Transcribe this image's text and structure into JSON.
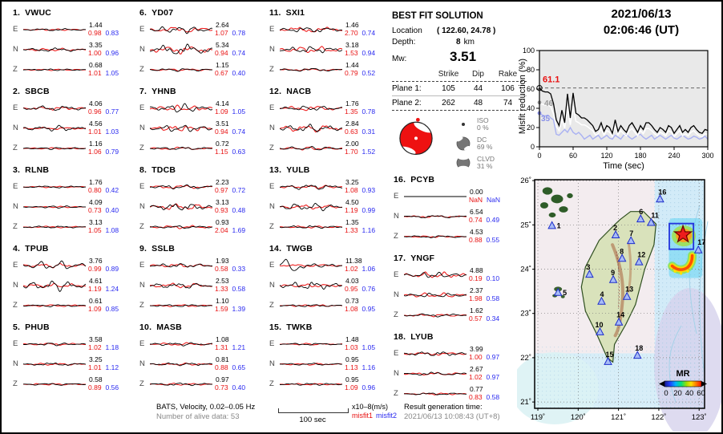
{
  "colors": {
    "misfit1_red": "#e81010",
    "misfit2_blue": "#2a2af0",
    "synthetic_red": "#ee2222",
    "observed_black": "#000000",
    "misfit_line2": "#a9b1f2",
    "station_triangle_fill": "#a8bcf6",
    "station_triangle_stroke": "#1e2ecc",
    "epicenter_red": "#ee1c1c",
    "plot_bg": "#e9e9e9"
  },
  "best_fit": {
    "title": "BEST FIT SOLUTION",
    "location_label": "Location",
    "location_value": "( 122.60,  24.78 )",
    "depth_label": "Depth:",
    "depth_value": "8",
    "depth_unit": "km",
    "mw_label": "Mw:",
    "mw_value": "3.51",
    "col_strike": "Strike",
    "col_dip": "Dip",
    "col_rake": "Rake",
    "plane1": {
      "label": "Plane 1:",
      "strike": "105",
      "dip": "44",
      "rake": "106"
    },
    "plane2": {
      "label": "Plane 2:",
      "strike": "262",
      "dip": "48",
      "rake": "74"
    },
    "iso": {
      "label": "ISO",
      "pct": "0 %"
    },
    "dc": {
      "label": "DC",
      "pct": "69 %"
    },
    "clvd": {
      "label": "CLVD",
      "pct": "31 %"
    }
  },
  "misfit_plot": {
    "title_line1": "2021/06/13",
    "title_line2": "02:06:46  (UT)",
    "ylabel": "Misfit reduction (%)",
    "xlabel": "Time (sec)",
    "best_value_label": "61.1",
    "white_start_label": "46",
    "blue_start_label": "35"
  },
  "map": {
    "lat_ticks": [
      "26˚",
      "25˚",
      "24˚",
      "23˚",
      "22˚",
      "21˚"
    ],
    "lon_ticks": [
      "119˚",
      "120˚",
      "121˚",
      "122˚",
      "123˚"
    ],
    "colorbar_label": "MR",
    "colorbar_ticks": [
      "0",
      "20",
      "40",
      "60"
    ],
    "epicenter": {
      "lon": 122.6,
      "lat": 24.78
    },
    "stations": [
      {
        "num": "1",
        "lon": 119.35,
        "lat": 24.98,
        "lx": 6,
        "ly": 3
      },
      {
        "num": "2",
        "lon": 120.93,
        "lat": 24.77,
        "lx": -3,
        "ly": -6
      },
      {
        "num": "3",
        "lon": 120.28,
        "lat": 23.88,
        "lx": -4,
        "ly": -6
      },
      {
        "num": "4",
        "lon": 120.58,
        "lat": 23.27,
        "lx": -2,
        "ly": -6
      },
      {
        "num": "5",
        "lon": 119.5,
        "lat": 23.47,
        "lx": 6,
        "ly": 3
      },
      {
        "num": "6",
        "lon": 121.55,
        "lat": 25.13,
        "lx": -2,
        "ly": -6
      },
      {
        "num": "7",
        "lon": 121.31,
        "lat": 24.64,
        "lx": -2,
        "ly": -6
      },
      {
        "num": "8",
        "lon": 121.09,
        "lat": 24.24,
        "lx": -3,
        "ly": -6
      },
      {
        "num": "9",
        "lon": 120.87,
        "lat": 23.76,
        "lx": -3,
        "ly": -6
      },
      {
        "num": "10",
        "lon": 120.54,
        "lat": 22.58,
        "lx": -6,
        "ly": -6
      },
      {
        "num": "11",
        "lon": 121.81,
        "lat": 25.05,
        "lx": 0,
        "ly": -6
      },
      {
        "num": "12",
        "lon": 121.51,
        "lat": 24.16,
        "lx": -2,
        "ly": -6
      },
      {
        "num": "13",
        "lon": 121.21,
        "lat": 23.38,
        "lx": -2,
        "ly": -6
      },
      {
        "num": "14",
        "lon": 121.01,
        "lat": 22.8,
        "lx": -3,
        "ly": -6
      },
      {
        "num": "15",
        "lon": 120.74,
        "lat": 21.91,
        "lx": -3,
        "ly": -6
      },
      {
        "num": "16",
        "lon": 122.03,
        "lat": 25.58,
        "lx": -2,
        "ly": -6
      },
      {
        "num": "17",
        "lon": 122.98,
        "lat": 24.43,
        "lx": -1,
        "ly": -7
      },
      {
        "num": "18",
        "lon": 121.47,
        "lat": 22.05,
        "lx": -3,
        "ly": -6
      }
    ]
  },
  "footer": {
    "line1": "BATS, Velocity, 0.02–0.05 Hz",
    "line2": "Number of alive data: 53",
    "scalebar_label": "100 sec",
    "units": "x10–8(m/s)",
    "misfit1_label": "misfit1",
    "misfit2_label": "misfit2",
    "result_label": "Result generation time:",
    "result_time": "2021/06/13 10:08:43 (UT+8)"
  },
  "stations": [
    {
      "label": "1.",
      "name": "VWUC",
      "channels": [
        {
          "comp": "E",
          "peak": "1.44",
          "misfit1": "0.98",
          "misfit2": "0.83",
          "obs_amp": 1.6,
          "syn_amp": 1.2
        },
        {
          "comp": "N",
          "peak": "3.35",
          "misfit1": "1.00",
          "misfit2": "0.96",
          "obs_amp": 2.6,
          "syn_amp": 2.0
        },
        {
          "comp": "Z",
          "peak": "0.68",
          "misfit1": "1.01",
          "misfit2": "1.05",
          "obs_amp": 1.3,
          "syn_amp": 1.0
        }
      ]
    },
    {
      "label": "2.",
      "name": "SBCB",
      "channels": [
        {
          "comp": "E",
          "peak": "4.06",
          "misfit1": "0.96",
          "misfit2": "0.77",
          "obs_amp": 3.6,
          "syn_amp": 2.4
        },
        {
          "comp": "N",
          "peak": "4.56",
          "misfit1": "1.01",
          "misfit2": "1.03",
          "obs_amp": 4.0,
          "syn_amp": 1.6
        },
        {
          "comp": "Z",
          "peak": "1.16",
          "misfit1": "1.06",
          "misfit2": "0.79",
          "obs_amp": 1.6,
          "syn_amp": 1.2
        }
      ]
    },
    {
      "label": "3.",
      "name": "RLNB",
      "channels": [
        {
          "comp": "E",
          "peak": "1.76",
          "misfit1": "0.80",
          "misfit2": "0.42",
          "obs_amp": 1.5,
          "syn_amp": 1.0
        },
        {
          "comp": "N",
          "peak": "4.09",
          "misfit1": "0.73",
          "misfit2": "0.40",
          "obs_amp": 1.6,
          "syn_amp": 1.0
        },
        {
          "comp": "Z",
          "peak": "3.13",
          "misfit1": "1.05",
          "misfit2": "1.08",
          "obs_amp": 1.5,
          "syn_amp": 1.2
        }
      ]
    },
    {
      "label": "4.",
      "name": "TPUB",
      "channels": [
        {
          "comp": "E",
          "peak": "3.76",
          "misfit1": "0.99",
          "misfit2": "0.89",
          "obs_amp": 6.5,
          "syn_amp": 3.0
        },
        {
          "comp": "N",
          "peak": "4.61",
          "misfit1": "1.19",
          "misfit2": "1.24",
          "obs_amp": 7.5,
          "syn_amp": 3.0
        },
        {
          "comp": "Z",
          "peak": "0.61",
          "misfit1": "1.09",
          "misfit2": "0.85",
          "obs_amp": 1.6,
          "syn_amp": 1.4
        }
      ]
    },
    {
      "label": "5.",
      "name": "PHUB",
      "channels": [
        {
          "comp": "E",
          "peak": "3.58",
          "misfit1": "1.02",
          "misfit2": "1.18",
          "obs_amp": 2.0,
          "syn_amp": 1.5
        },
        {
          "comp": "N",
          "peak": "3.25",
          "misfit1": "1.01",
          "misfit2": "1.12",
          "obs_amp": 2.0,
          "syn_amp": 1.5
        },
        {
          "comp": "Z",
          "peak": "0.58",
          "misfit1": "0.89",
          "misfit2": "0.56",
          "obs_amp": 1.5,
          "syn_amp": 1.2
        }
      ]
    },
    {
      "label": "6.",
      "name": "YD07",
      "channels": [
        {
          "comp": "E",
          "peak": "2.64",
          "misfit1": "1.07",
          "misfit2": "0.78",
          "obs_amp": 5.0,
          "syn_amp": 4.0
        },
        {
          "comp": "N",
          "peak": "5.34",
          "misfit1": "0.94",
          "misfit2": "0.74",
          "obs_amp": 7.5,
          "syn_amp": 5.5
        },
        {
          "comp": "Z",
          "peak": "1.15",
          "misfit1": "0.67",
          "misfit2": "0.40",
          "obs_amp": 2.2,
          "syn_amp": 1.6
        }
      ]
    },
    {
      "label": "7.",
      "name": "YHNB",
      "channels": [
        {
          "comp": "E",
          "peak": "4.14",
          "misfit1": "1.09",
          "misfit2": "1.05",
          "obs_amp": 6.0,
          "syn_amp": 4.0
        },
        {
          "comp": "N",
          "peak": "3.51",
          "misfit1": "0.94",
          "misfit2": "0.74",
          "obs_amp": 5.0,
          "syn_amp": 4.0
        },
        {
          "comp": "Z",
          "peak": "0.72",
          "misfit1": "1.15",
          "misfit2": "0.63",
          "obs_amp": 2.0,
          "syn_amp": 2.0
        }
      ]
    },
    {
      "label": "8.",
      "name": "TDCB",
      "channels": [
        {
          "comp": "E",
          "peak": "2.23",
          "misfit1": "0.97",
          "misfit2": "0.72",
          "obs_amp": 3.0,
          "syn_amp": 2.5
        },
        {
          "comp": "N",
          "peak": "3.13",
          "misfit1": "0.93",
          "misfit2": "0.48",
          "obs_amp": 5.0,
          "syn_amp": 4.5
        },
        {
          "comp": "Z",
          "peak": "0.93",
          "misfit1": "2.04",
          "misfit2": "1.69",
          "obs_amp": 2.0,
          "syn_amp": 2.2
        }
      ]
    },
    {
      "label": "9.",
      "name": "SSLB",
      "channels": [
        {
          "comp": "E",
          "peak": "1.93",
          "misfit1": "0.58",
          "misfit2": "0.33",
          "obs_amp": 3.0,
          "syn_amp": 2.5
        },
        {
          "comp": "N",
          "peak": "2.53",
          "misfit1": "1.33",
          "misfit2": "0.58",
          "obs_amp": 4.0,
          "syn_amp": 3.5
        },
        {
          "comp": "Z",
          "peak": "1.10",
          "misfit1": "1.59",
          "misfit2": "1.39",
          "obs_amp": 1.6,
          "syn_amp": 1.6
        }
      ]
    },
    {
      "label": "10.",
      "name": "MASB",
      "channels": [
        {
          "comp": "E",
          "peak": "1.08",
          "misfit1": "1.31",
          "misfit2": "1.21",
          "obs_amp": 2.4,
          "syn_amp": 2.0
        },
        {
          "comp": "N",
          "peak": "0.81",
          "misfit1": "0.88",
          "misfit2": "0.65",
          "obs_amp": 2.0,
          "syn_amp": 1.6
        },
        {
          "comp": "Z",
          "peak": "0.97",
          "misfit1": "0.73",
          "misfit2": "0.40",
          "obs_amp": 2.0,
          "syn_amp": 1.5
        }
      ]
    },
    {
      "label": "11.",
      "name": "SXI1",
      "channels": [
        {
          "comp": "E",
          "peak": "1.46",
          "misfit1": "2.70",
          "misfit2": "0.74",
          "obs_amp": 3.8,
          "syn_amp": 3.8
        },
        {
          "comp": "N",
          "peak": "3.18",
          "misfit1": "1.53",
          "misfit2": "0.94",
          "obs_amp": 4.6,
          "syn_amp": 4.6
        },
        {
          "comp": "Z",
          "peak": "1.44",
          "misfit1": "0.79",
          "misfit2": "0.52",
          "obs_amp": 2.4,
          "syn_amp": 1.5
        }
      ]
    },
    {
      "label": "12.",
      "name": "NACB",
      "channels": [
        {
          "comp": "E",
          "peak": "1.76",
          "misfit1": "1.35",
          "misfit2": "0.78",
          "obs_amp": 3.4,
          "syn_amp": 3.4
        },
        {
          "comp": "N",
          "peak": "2.84",
          "misfit1": "0.63",
          "misfit2": "0.31",
          "obs_amp": 5.5,
          "syn_amp": 5.2
        },
        {
          "comp": "Z",
          "peak": "2.00",
          "misfit1": "1.70",
          "misfit2": "1.52",
          "obs_amp": 2.8,
          "syn_amp": 2.4
        }
      ]
    },
    {
      "label": "13.",
      "name": "YULB",
      "channels": [
        {
          "comp": "E",
          "peak": "3.25",
          "misfit1": "1.08",
          "misfit2": "0.93",
          "obs_amp": 3.8,
          "syn_amp": 2.4
        },
        {
          "comp": "N",
          "peak": "4.50",
          "misfit1": "1.19",
          "misfit2": "0.99",
          "obs_amp": 5.5,
          "syn_amp": 3.0
        },
        {
          "comp": "Z",
          "peak": "1.35",
          "misfit1": "1.33",
          "misfit2": "1.16",
          "obs_amp": 2.0,
          "syn_amp": 1.6
        }
      ]
    },
    {
      "label": "14.",
      "name": "TWGB",
      "channels": [
        {
          "comp": "E",
          "peak": "11.38",
          "misfit1": "1.02",
          "misfit2": "1.06",
          "obs_amp": 3.0,
          "syn_amp": 1.6,
          "spike": 9.5
        },
        {
          "comp": "N",
          "peak": "4.03",
          "misfit1": "0.95",
          "misfit2": "0.76",
          "obs_amp": 5.5,
          "syn_amp": 2.4
        },
        {
          "comp": "Z",
          "peak": "0.73",
          "misfit1": "1.08",
          "misfit2": "0.95",
          "obs_amp": 1.6,
          "syn_amp": 1.4
        }
      ]
    },
    {
      "label": "15.",
      "name": "TWKB",
      "channels": [
        {
          "comp": "E",
          "peak": "1.48",
          "misfit1": "1.03",
          "misfit2": "1.05",
          "obs_amp": 1.5,
          "syn_amp": 1.2
        },
        {
          "comp": "N",
          "peak": "0.95",
          "misfit1": "1.13",
          "misfit2": "1.16",
          "obs_amp": 1.5,
          "syn_amp": 1.4
        },
        {
          "comp": "Z",
          "peak": "0.95",
          "misfit1": "1.09",
          "misfit2": "0.96",
          "obs_amp": 1.5,
          "syn_amp": 1.2
        }
      ]
    },
    {
      "label": "16.",
      "name": "PCYB",
      "channels": [
        {
          "comp": "E",
          "peak": "0.00",
          "misfit1": "NaN",
          "misfit2": "NaN",
          "obs_amp": 0,
          "syn_amp": 0
        },
        {
          "comp": "N",
          "peak": "6.54",
          "misfit1": "0.74",
          "misfit2": "0.49",
          "obs_amp": 2.0,
          "syn_amp": 1.5
        },
        {
          "comp": "Z",
          "peak": "4.53",
          "misfit1": "0.88",
          "misfit2": "0.55",
          "obs_amp": 1.6,
          "syn_amp": 1.3
        }
      ]
    },
    {
      "label": "17.",
      "name": "YNGF",
      "channels": [
        {
          "comp": "E",
          "peak": "4.88",
          "misfit1": "0.19",
          "misfit2": "0.10",
          "obs_amp": 4.0,
          "syn_amp": 4.4
        },
        {
          "comp": "N",
          "peak": "2.37",
          "misfit1": "1.98",
          "misfit2": "0.58",
          "obs_amp": 3.0,
          "syn_amp": 3.4
        },
        {
          "comp": "Z",
          "peak": "1.62",
          "misfit1": "0.57",
          "misfit2": "0.34",
          "obs_amp": 2.2,
          "syn_amp": 2.0
        }
      ]
    },
    {
      "label": "18.",
      "name": "LYUB",
      "channels": [
        {
          "comp": "E",
          "peak": "3.99",
          "misfit1": "1.00",
          "misfit2": "0.97",
          "obs_amp": 3.2,
          "syn_amp": 2.0
        },
        {
          "comp": "N",
          "peak": "2.67",
          "misfit1": "1.02",
          "misfit2": "0.97",
          "obs_amp": 2.2,
          "syn_amp": 2.0
        },
        {
          "comp": "Z",
          "peak": "0.77",
          "misfit1": "0.83",
          "misfit2": "0.58",
          "obs_amp": 1.6,
          "syn_amp": 1.4
        }
      ]
    }
  ],
  "chart_data": [
    {
      "type": "line",
      "title": "Misfit reduction vs time",
      "xlabel": "Time (sec)",
      "ylabel": "Misfit reduction (%)",
      "xlim": [
        0,
        300
      ],
      "ylim": [
        0,
        100
      ],
      "xticks": [
        0,
        60,
        120,
        180,
        240,
        300
      ],
      "yticks": [
        0,
        20,
        40,
        60,
        80,
        100
      ],
      "dashed_reference_y": 61.1,
      "x_step": 5,
      "series": [
        {
          "name": "best-solution-misfit-reduction",
          "color": "#000000",
          "start_label": "61.1",
          "values": [
            61.1,
            58,
            57,
            57,
            55,
            45,
            28,
            22,
            38,
            25,
            55,
            30,
            56,
            35,
            33,
            30,
            30,
            28,
            25,
            22,
            16,
            18,
            25,
            16,
            22,
            20,
            14,
            28,
            16,
            22,
            18,
            15,
            22,
            25,
            20,
            15,
            22,
            18,
            25,
            25,
            22,
            18,
            15,
            20,
            18,
            15,
            22,
            20,
            14,
            18,
            22,
            15,
            18,
            15,
            20,
            22,
            18,
            15,
            14,
            18,
            17
          ]
        },
        {
          "name": "misfit2-reduction",
          "color": "#a9b1f2",
          "start_label": "35",
          "values": [
            35,
            33,
            32,
            33,
            30,
            28,
            13,
            12,
            15,
            18,
            15,
            20,
            15,
            13,
            15,
            12,
            8,
            10,
            12,
            8,
            10,
            12,
            8,
            10,
            12,
            9,
            8,
            12,
            10,
            8,
            12,
            13,
            10,
            8,
            10,
            12,
            13,
            10,
            8,
            10,
            12,
            8,
            10,
            12,
            10,
            8,
            10,
            12,
            9,
            8,
            10,
            12,
            10,
            8,
            9,
            11,
            10,
            8,
            9,
            11,
            8
          ]
        },
        {
          "name": "secondary-white",
          "color": "#ffffff",
          "start_label": "46",
          "derived_factor_of_best": 0.76
        }
      ]
    },
    {
      "type": "scatter",
      "title": "Station map with misfit-reduction (MR) grid search patch",
      "x_axis": "longitude",
      "y_axis": "latitude",
      "xlim": [
        118.92,
        123.15
      ],
      "ylim": [
        20.85,
        26.02
      ],
      "epicenter": {
        "lon": 122.6,
        "lat": 24.78
      },
      "colorbar": {
        "label": "MR",
        "ticks": [
          0,
          20,
          40,
          60
        ]
      },
      "points_ref": "map.stations"
    },
    {
      "type": "table",
      "title": "Waveform peak amplitude / misfit1 / misfit2 per station channel",
      "rows_ref": "stations"
    }
  ]
}
